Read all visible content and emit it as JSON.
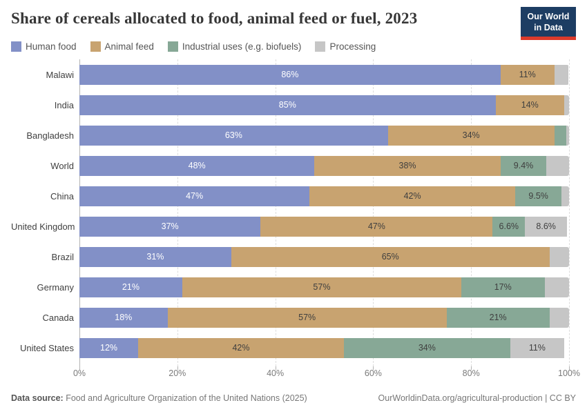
{
  "header": {
    "title": "Share of cereals allocated to food, animal feed or fuel, 2023",
    "logo_line1": "Our World",
    "logo_line2": "in Data",
    "logo_bg": "#1d3d63",
    "logo_accent": "#dc3a2b"
  },
  "chart_data": {
    "type": "bar",
    "stacked": true,
    "orientation": "horizontal",
    "title": "Share of cereals allocated to food, animal feed or fuel, 2023",
    "categories": [
      "Malawi",
      "India",
      "Bangladesh",
      "World",
      "China",
      "United Kingdom",
      "Brazil",
      "Germany",
      "Canada",
      "United States"
    ],
    "series": [
      {
        "name": "Human food",
        "color": "#8290c7",
        "label_color": "#ffffff",
        "values": [
          86,
          85,
          63,
          48,
          47,
          37,
          31,
          21,
          18,
          12
        ],
        "labels": [
          "86%",
          "85%",
          "63%",
          "48%",
          "47%",
          "37%",
          "31%",
          "21%",
          "18%",
          "12%"
        ]
      },
      {
        "name": "Animal feed",
        "color": "#c8a370",
        "label_color": "#3f3f3f",
        "values": [
          11,
          14,
          34,
          38,
          42,
          47.4,
          65,
          57,
          57,
          42
        ],
        "labels": [
          "11%",
          "14%",
          "34%",
          "38%",
          "42%",
          "47%",
          "65%",
          "57%",
          "57%",
          "42%"
        ]
      },
      {
        "name": "Industrial uses (e.g. biofuels)",
        "color": "#87a896",
        "label_color": "#3f3f3f",
        "values": [
          0,
          0,
          2.5,
          9.4,
          9.5,
          6.6,
          0,
          17,
          21,
          34
        ],
        "labels": [
          null,
          null,
          null,
          "9.4%",
          "9.5%",
          "6.6%",
          null,
          "17%",
          "21%",
          "34%"
        ]
      },
      {
        "name": "Processing",
        "color": "#c6c6c6",
        "label_color": "#3f3f3f",
        "values": [
          2.8,
          1,
          0.5,
          4.6,
          1.5,
          8.6,
          4,
          5,
          4,
          11
        ],
        "labels": [
          null,
          null,
          null,
          null,
          null,
          "8.6%",
          null,
          null,
          null,
          "11%"
        ]
      }
    ],
    "xlim": [
      0,
      100
    ],
    "xticks": [
      0,
      20,
      40,
      60,
      80,
      100
    ],
    "xtick_labels": [
      "0%",
      "20%",
      "40%",
      "60%",
      "80%",
      "100%"
    ],
    "grid": true,
    "legend_position": "top"
  },
  "footer": {
    "source_label": "Data source:",
    "source_text": " Food and Agriculture Organization of the United Nations (2025)",
    "right_text": "OurWorldinData.org/agricultural-production | CC BY"
  }
}
